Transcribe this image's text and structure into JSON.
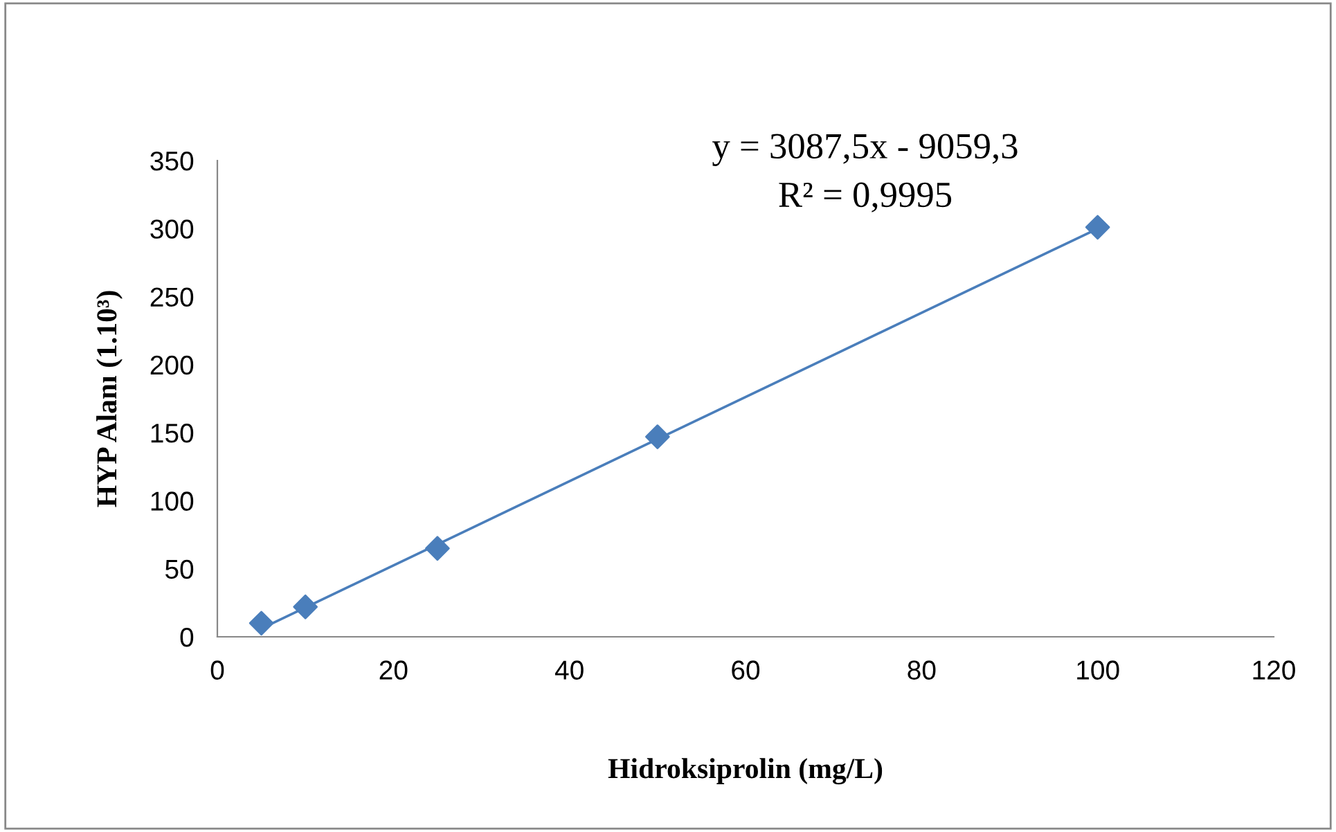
{
  "chart_data": {
    "type": "scatter",
    "xlabel": "Hidroksiprolin (mg/L)",
    "ylabel": "HYP Alanı (1.10³)",
    "x": [
      5,
      10,
      25,
      50,
      100
    ],
    "series": [
      {
        "color": "#4a7ebb",
        "marker": "diamond",
        "values": [
          10,
          22,
          65,
          147,
          301
        ]
      },
      {
        "type": "line",
        "color": "#4a7ebb",
        "marker": "none",
        "x": [
          5,
          100
        ],
        "values": [
          6,
          300
        ]
      }
    ],
    "annotations": [
      "y = 3087,5x - 9059,3",
      "R² = 0,9995"
    ],
    "xlim": [
      0,
      120
    ],
    "xticks": [
      0,
      20,
      40,
      60,
      80,
      100,
      120
    ],
    "ylim": [
      0,
      350
    ],
    "yticks": [
      0,
      50,
      100,
      150,
      200,
      250,
      300,
      350
    ],
    "grid": false,
    "legend": false
  }
}
